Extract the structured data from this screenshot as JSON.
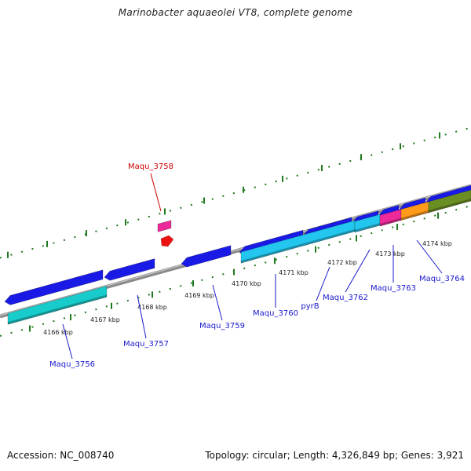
{
  "header": {
    "title": "Marinobacter aquaeolei VT8, complete genome"
  },
  "footer": {
    "accession": "Accession: NC_008740",
    "summary": "Topology: circular; Length: 4,326,849 bp; Genes: 3,921"
  },
  "colors": {
    "backbone": "#8a8a8a",
    "gene_blue": "#1a1ae6",
    "cds_cyan": "#22c6ee",
    "cds_teal": "#19cccc",
    "rna_pink": "#ee2a9a",
    "cds_orange": "#ff9a1a",
    "cds_olive": "#6b8e23",
    "pseudo_red": "#ee1111",
    "tick_green": "#1f7a1f",
    "label_blue": "#1a1acc",
    "label_red": "#cc0000"
  },
  "scale": {
    "ticks": [
      "4166 kbp",
      "4167 kbp",
      "4168 kbp",
      "4169 kbp",
      "4170 kbp",
      "4171 kbp",
      "4172 kbp",
      "4173 kbp",
      "4174 kbp"
    ]
  },
  "genes": [
    {
      "label": "Maqu_3756",
      "highlight": false
    },
    {
      "label": "Maqu_3757",
      "highlight": false
    },
    {
      "label": "Maqu_3758",
      "highlight": true
    },
    {
      "label": "Maqu_3759",
      "highlight": false
    },
    {
      "label": "Maqu_3760",
      "highlight": false
    },
    {
      "label": "pyrB",
      "highlight": false
    },
    {
      "label": "Maqu_3762",
      "highlight": false
    },
    {
      "label": "Maqu_3763",
      "highlight": false
    },
    {
      "label": "Maqu_3764",
      "highlight": false
    }
  ]
}
